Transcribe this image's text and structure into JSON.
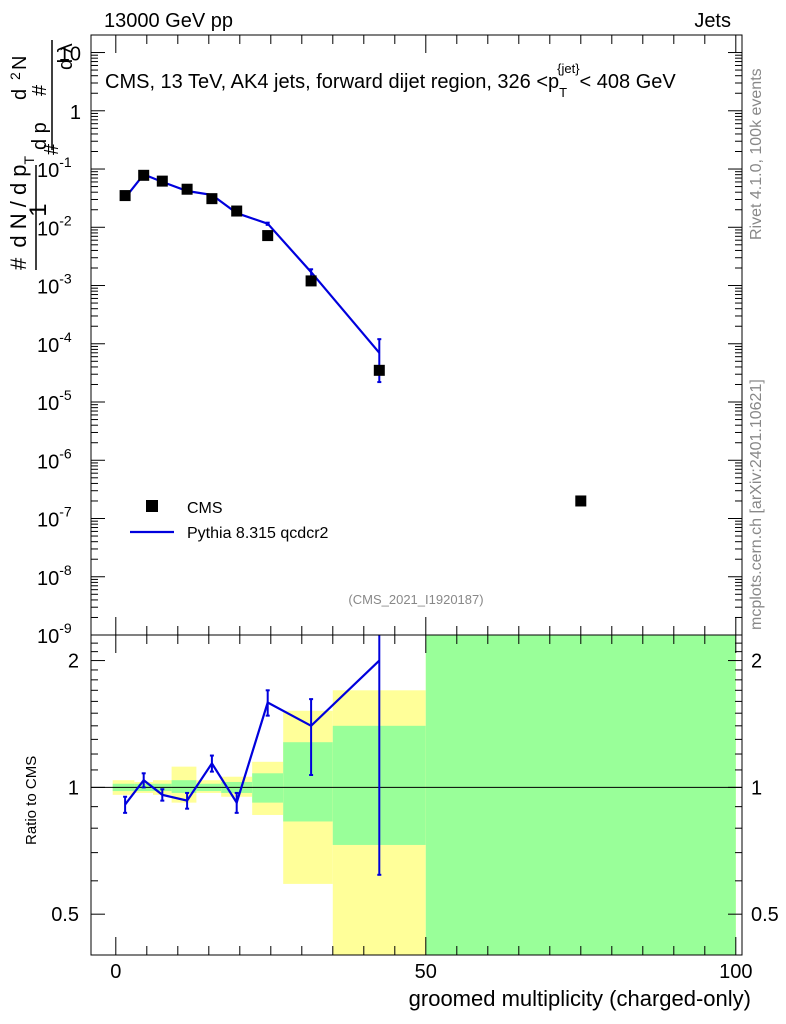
{
  "header": {
    "left": "13000 GeV pp",
    "right": "Jets"
  },
  "side": {
    "rivet": "Rivet 4.1.0,  100k events",
    "mcplots": "mcplots.cern.ch [arXiv:2401.10621]"
  },
  "colors": {
    "data": "#000000",
    "mc": "#0000dd",
    "band_inner": "#99ff99",
    "band_outer": "#ffff99"
  },
  "chart_data": [
    {
      "type": "scatter",
      "panel": "main",
      "title_prefix": "CMS, 13 TeV, AK4 jets, forward dijet region, 326 <p",
      "title_sup": "{jet}",
      "title_sub": "T",
      "title_suffix": "< 408 GeV",
      "ylabel": "1/(dN/dpT) · d²N/(dpT dλ)",
      "yscale": "log",
      "ylim": [
        1e-09,
        20
      ],
      "xlim": [
        -4,
        101
      ],
      "ytick_base": "10",
      "ytick_exps": [
        "-9",
        "-8",
        "-7",
        "-6",
        "-5",
        "-4",
        "-3",
        "-2",
        "-1"
      ],
      "ytick_plain": [
        "1",
        "10"
      ],
      "analysis_id": "(CMS_2021_I1920187)",
      "legend": [
        "CMS",
        "Pythia 8.315 qcdcr2"
      ],
      "series": [
        {
          "name": "CMS",
          "x": [
            1.5,
            4.5,
            7.5,
            11.5,
            15.5,
            19.5,
            24.5,
            31.5,
            42.5,
            75
          ],
          "y": [
            0.035,
            0.078,
            0.062,
            0.045,
            0.031,
            0.019,
            0.0072,
            0.0012,
            3.5e-05,
            2e-07
          ]
        },
        {
          "name": "Pythia 8.315 qcdcr2",
          "x": [
            1.5,
            4.5,
            7.5,
            11.5,
            15.5,
            19.5,
            24.5,
            31.5,
            42.5
          ],
          "y": [
            0.032,
            0.081,
            0.06,
            0.042,
            0.036,
            0.0175,
            0.0115,
            0.0017,
            7e-05
          ],
          "yerr_lo": [
            0.0318,
            0.0805,
            0.0596,
            0.0417,
            0.0357,
            0.0173,
            0.011,
            0.00125,
            2.2e-05
          ],
          "yerr_hi": [
            0.0322,
            0.0815,
            0.0604,
            0.0423,
            0.0363,
            0.0177,
            0.012,
            0.0019,
            0.00012
          ]
        }
      ]
    },
    {
      "type": "line",
      "panel": "ratio",
      "ylabel": "Ratio to CMS",
      "xlabel": "groomed multiplicity (charged-only)",
      "ylim": [
        0.4,
        2.3
      ],
      "xlim": [
        -4,
        101
      ],
      "yscale": "log",
      "yticks": [
        0.5,
        1,
        2
      ],
      "ytick_labels": [
        "0.5",
        "1",
        "2"
      ],
      "xticks": [
        0,
        50,
        100
      ],
      "xtick_labels": [
        "0",
        "50",
        "100"
      ],
      "bands": [
        {
          "x0": -0.5,
          "x1": 3,
          "in_lo": 0.98,
          "in_hi": 1.02,
          "out_lo": 0.96,
          "out_hi": 1.04
        },
        {
          "x0": 3,
          "x1": 6,
          "in_lo": 0.98,
          "in_hi": 1.02,
          "out_lo": 0.97,
          "out_hi": 1.03
        },
        {
          "x0": 6,
          "x1": 9,
          "in_lo": 0.98,
          "in_hi": 1.02,
          "out_lo": 0.96,
          "out_hi": 1.04
        },
        {
          "x0": 9,
          "x1": 13,
          "in_lo": 0.97,
          "in_hi": 1.04,
          "out_lo": 0.92,
          "out_hi": 1.12
        },
        {
          "x0": 13,
          "x1": 17,
          "in_lo": 0.98,
          "in_hi": 1.02,
          "out_lo": 0.97,
          "out_hi": 1.04
        },
        {
          "x0": 17,
          "x1": 22,
          "in_lo": 0.97,
          "in_hi": 1.03,
          "out_lo": 0.95,
          "out_hi": 1.06
        },
        {
          "x0": 22,
          "x1": 27,
          "in_lo": 0.92,
          "in_hi": 1.08,
          "out_lo": 0.86,
          "out_hi": 1.15
        },
        {
          "x0": 27,
          "x1": 35,
          "in_lo": 0.83,
          "in_hi": 1.28,
          "out_lo": 0.59,
          "out_hi": 1.52
        },
        {
          "x0": 35,
          "x1": 50,
          "in_lo": 0.73,
          "in_hi": 1.4,
          "out_lo": 0.4,
          "out_hi": 1.7
        },
        {
          "x0": 50,
          "x1": 100,
          "in_lo": 0.4,
          "in_hi": 2.3,
          "out_lo": 0.4,
          "out_hi": 2.3
        }
      ],
      "series": [
        {
          "name": "Pythia 8.315 qcdcr2 / CMS",
          "x": [
            1.5,
            4.5,
            7.5,
            11.5,
            15.5,
            19.5,
            24.5,
            31.5,
            42.5
          ],
          "y": [
            0.91,
            1.04,
            0.96,
            0.93,
            1.14,
            0.92,
            1.59,
            1.4,
            2.0
          ],
          "yerr_lo": [
            0.87,
            1.0,
            0.93,
            0.89,
            1.09,
            0.87,
            1.48,
            1.07,
            0.62
          ],
          "yerr_hi": [
            0.95,
            1.08,
            0.99,
            0.97,
            1.19,
            0.97,
            1.7,
            1.62,
            2.5
          ]
        }
      ]
    }
  ]
}
